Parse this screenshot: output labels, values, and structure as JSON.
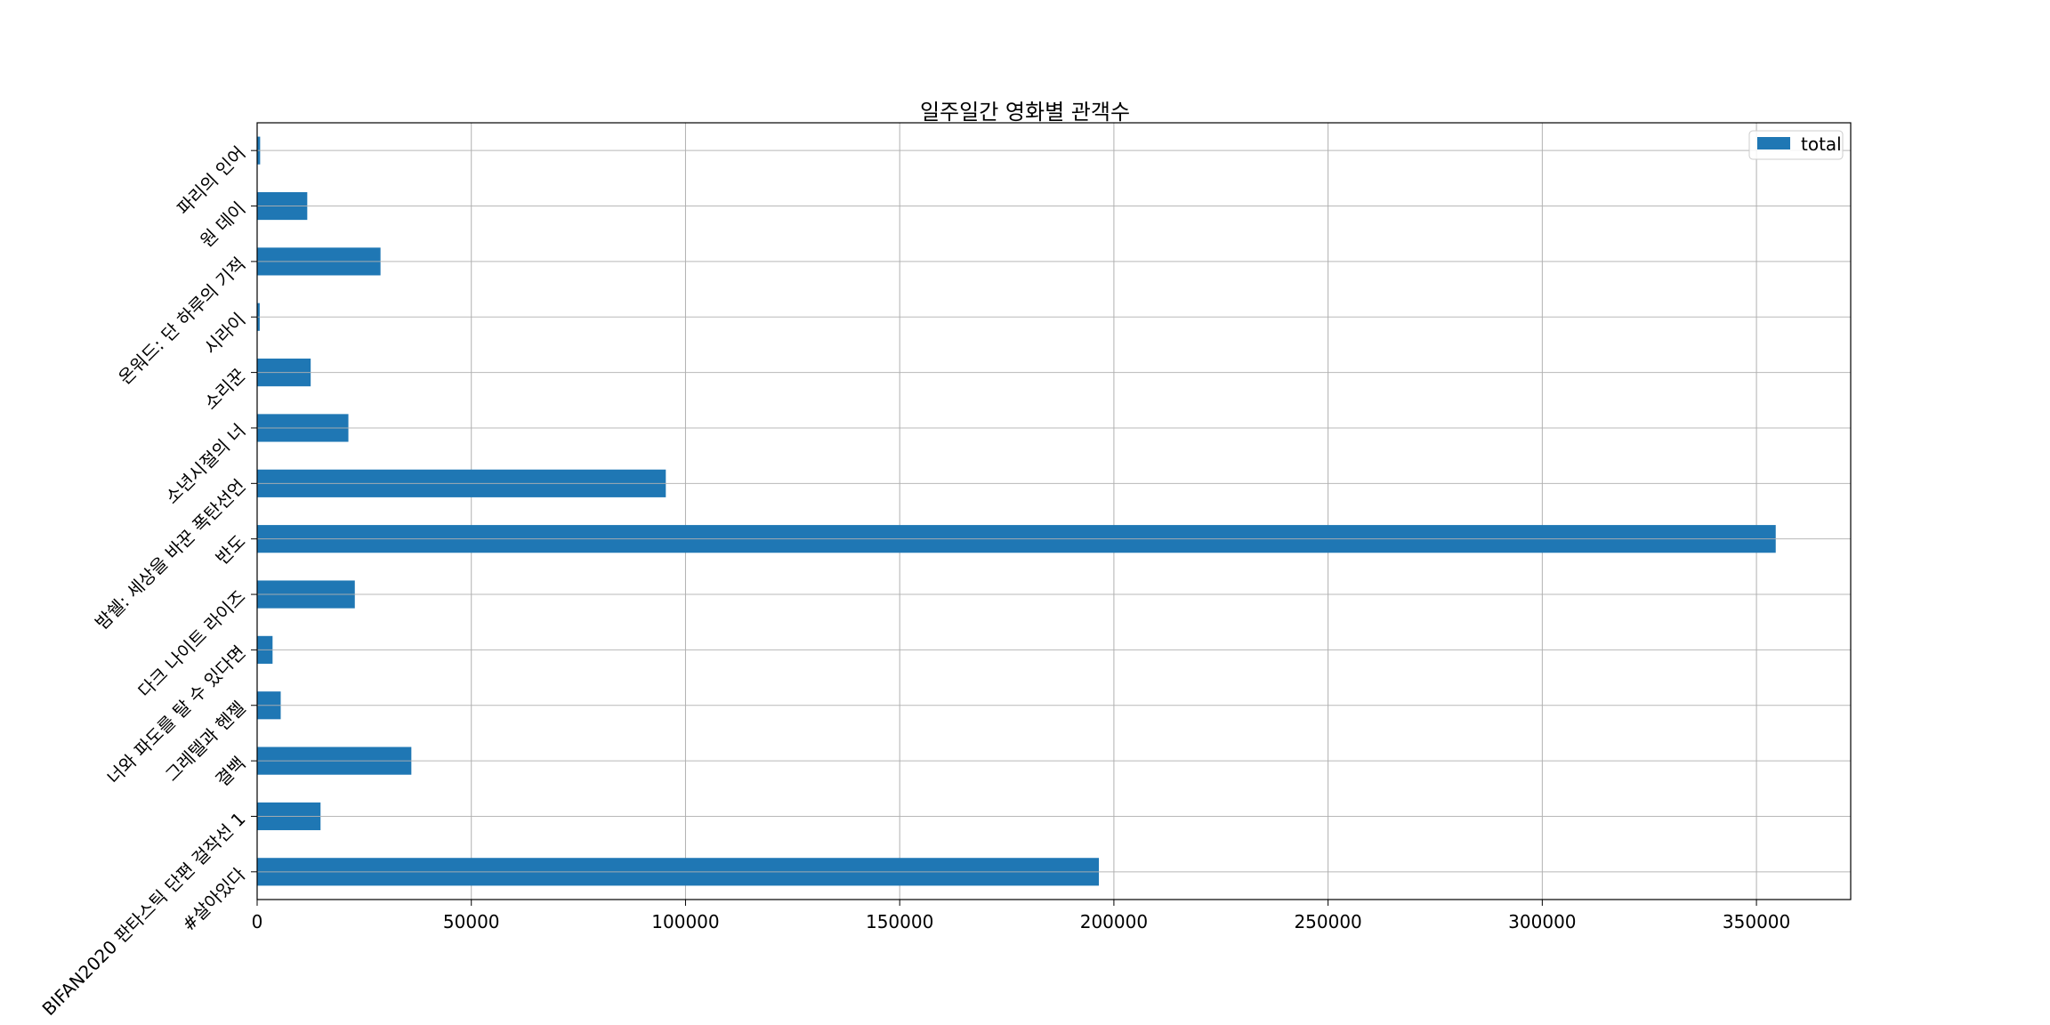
{
  "chart_data": {
    "type": "bar",
    "orientation": "horizontal",
    "title": "일주일간 영화별 관객수",
    "xlabel": "",
    "ylabel": "",
    "categories": [
      "#살아있다",
      "BIFAN2020 판타스틱 단편 걸작선 1",
      "결백",
      "그레텔과 헨젤",
      "너와 파도를 탈 수 있다면",
      "다크 나이트 라이즈",
      "반도",
      "밤쉘: 세상을 바꾼 폭탄선언",
      "소년시절의 너",
      "소리꾼",
      "시라이",
      "온워드: 단 하루의 기적",
      "원 데이",
      "파리의 인어"
    ],
    "series": [
      {
        "name": "total",
        "values": [
          196500,
          14800,
          36000,
          5500,
          3600,
          22800,
          354500,
          95400,
          21300,
          12500,
          600,
          28800,
          11700,
          700
        ]
      }
    ],
    "xlim": [
      0,
      372000
    ],
    "x_ticks": [
      "0",
      "50000",
      "100000",
      "150000",
      "200000",
      "250000",
      "300000",
      "350000"
    ],
    "grid": true,
    "legend": {
      "position": "upper-right",
      "entries": [
        "total"
      ]
    },
    "colors": {
      "bar": "#1f77b4",
      "grid": "#b0b0b0",
      "axes": "#000000"
    }
  }
}
